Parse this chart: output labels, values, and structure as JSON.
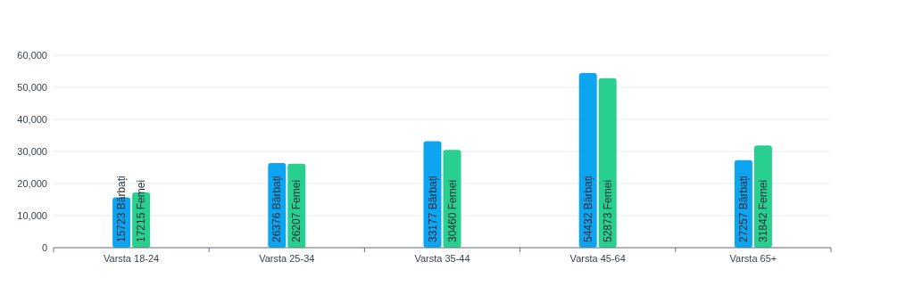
{
  "chart_data": {
    "type": "bar",
    "categories": [
      "Varsta 18-24",
      "Varsta 25-34",
      "Varsta 35-44",
      "Varsta 45-64",
      "Varsta 65+"
    ],
    "series": [
      {
        "color": "#0ea5f0",
        "values": [
          15723,
          26376,
          33177,
          54432,
          27257
        ],
        "value_labels": [
          "15723 Bărbați",
          "26376 Bărbați",
          "33177 Bărbați",
          "54432 Bărbați",
          "27257 Bărbați"
        ]
      },
      {
        "color": "#29cf8e",
        "values": [
          17215,
          26207,
          30460,
          52873,
          31842
        ],
        "value_labels": [
          "17215 Femei",
          "26207 Femei",
          "30460 Femei",
          "52873 Femei",
          "31842 Femei"
        ]
      }
    ],
    "ylim": [
      0,
      60000
    ],
    "yticks": [
      {
        "value": 0,
        "label": "0"
      },
      {
        "value": 10000,
        "label": "10,000"
      },
      {
        "value": 20000,
        "label": "20,000"
      },
      {
        "value": 30000,
        "label": "30,000"
      },
      {
        "value": 40000,
        "label": "40,000"
      },
      {
        "value": 50000,
        "label": "50,000"
      },
      {
        "value": 60000,
        "label": "60,000"
      }
    ],
    "grid": "y"
  }
}
